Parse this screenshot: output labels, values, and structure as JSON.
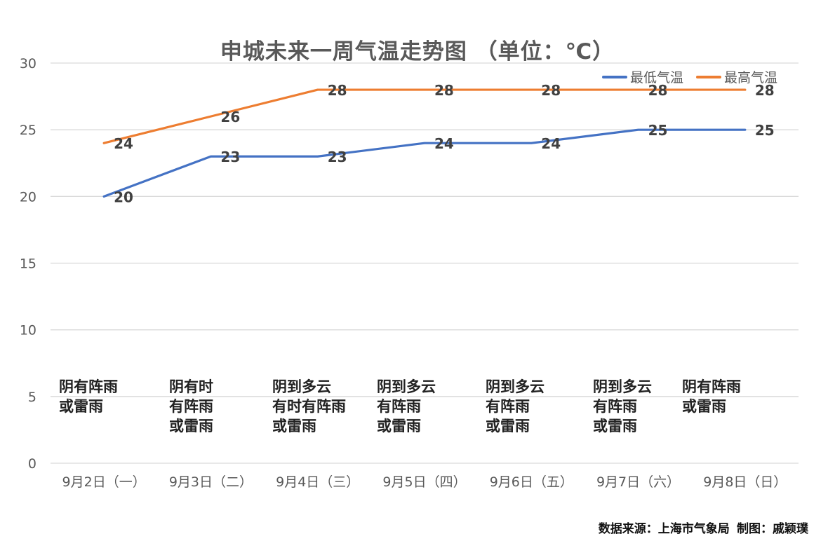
{
  "title": "申城未来一周气温走势图 （单位：℃）",
  "source_note": "数据来源：上海市气象局  制图：戚颖璞",
  "weather": [
    "阴有阵雨\n或雷雨",
    "阴有时\n有阵雨\n或雷雨",
    "阴到多云\n有时有阵雨\n或雷雨",
    "阴到多云\n有阵雨\n或雷雨",
    "阴到多云\n有阵雨\n或雷雨",
    "阴到多云\n有阵雨\n或雷雨",
    "阴有阵雨\n或雷雨"
  ],
  "colors": {
    "low": "#4472C4",
    "high": "#ED7D31",
    "grid": "#d9d9d9",
    "axis_text": "#595959"
  },
  "chart_data": {
    "type": "line",
    "title": "申城未来一周气温走势图 （单位：℃）",
    "categories": [
      "9月2日（一）",
      "9月3日（二）",
      "9月4日（三）",
      "9月5日（四）",
      "9月6日（五）",
      "9月7日（六）",
      "9月8日（日）"
    ],
    "series": [
      {
        "name": "最低气温",
        "values": [
          20,
          23,
          23,
          24,
          24,
          25,
          25
        ]
      },
      {
        "name": "最高气温",
        "values": [
          24,
          26,
          28,
          28,
          28,
          28,
          28
        ]
      }
    ],
    "ylim": [
      0,
      30
    ],
    "yticks": [
      0,
      5,
      10,
      15,
      20,
      25,
      30
    ],
    "grid": true,
    "legend": "top-right",
    "data_labels": true
  }
}
